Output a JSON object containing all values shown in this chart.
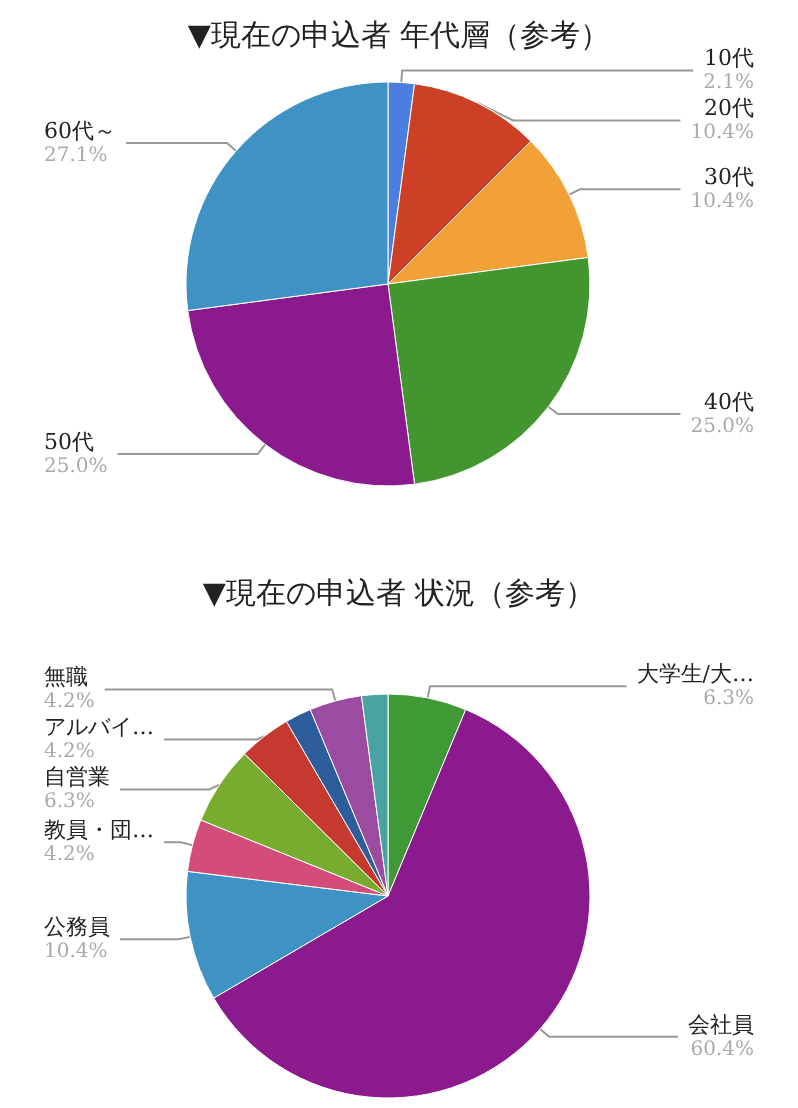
{
  "chart_data": [
    {
      "type": "pie",
      "title": "▼現在の申込者 年代層（参考）",
      "categories": [
        "10代",
        "20代",
        "30代",
        "40代",
        "50代",
        "60代～"
      ],
      "values": [
        2.1,
        10.4,
        10.4,
        25.0,
        25.0,
        27.1
      ],
      "value_labels": [
        "2.1%",
        "10.4%",
        "10.4%",
        "25.0%",
        "25.0%",
        "27.1%"
      ],
      "colors": [
        "#4a7fe0",
        "#cc4125",
        "#f1a137",
        "#43962f",
        "#8b1a8f",
        "#3f93c4"
      ]
    },
    {
      "type": "pie",
      "title": "▼現在の申込者 状況（参考）",
      "categories": [
        "大学生/大…",
        "会社員",
        "公務員",
        "教員・団…",
        "自営業",
        "アルバイ…",
        null,
        "無職",
        null
      ],
      "values": [
        6.3,
        60.4,
        10.4,
        4.2,
        6.3,
        4.2,
        2.1,
        4.2,
        2.1
      ],
      "value_labels": [
        "6.3%",
        "60.4%",
        "10.4%",
        "4.2%",
        "6.3%",
        "4.2%",
        null,
        "4.2%",
        null
      ],
      "colors": [
        "#3f9a36",
        "#8b1a8f",
        "#3f93c4",
        "#d44c78",
        "#77ac2f",
        "#c5392f",
        "#2e5d9c",
        "#9b4ca0",
        "#4aa3a3"
      ]
    }
  ]
}
